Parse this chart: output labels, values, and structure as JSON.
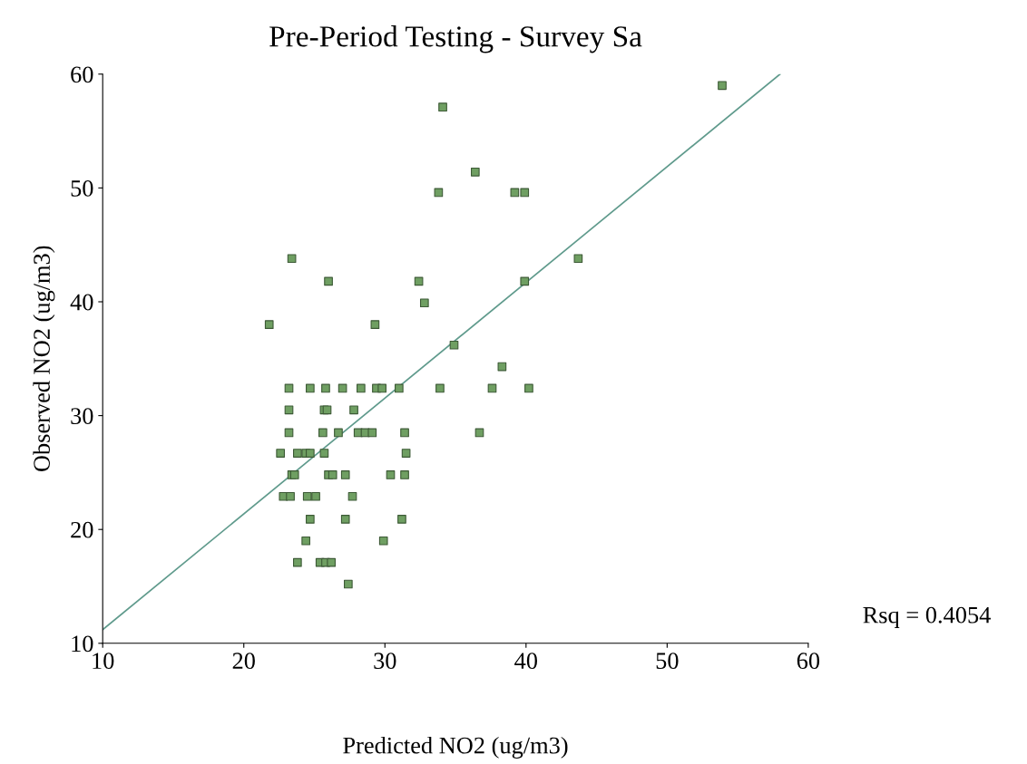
{
  "chart_data": {
    "type": "scatter",
    "title": "Pre-Period Testing - Survey Sa",
    "xlabel": "Predicted NO2 (ug/m3)",
    "ylabel": "Observed NO2 (ug/m3)",
    "xlim": [
      10,
      60
    ],
    "xticks": [
      10,
      20,
      30,
      40,
      50,
      60
    ],
    "ylim": [
      10,
      60
    ],
    "yticks": [
      10,
      20,
      30,
      40,
      50,
      60
    ],
    "grid": false,
    "legend": false,
    "marker": "square",
    "annotations": [
      "Rsq = 0.4054"
    ],
    "series": [
      {
        "color": "#6f9f62",
        "x": [
          21.8,
          23.4,
          26.0,
          34.1,
          33.8,
          36.4,
          39.2,
          39.9,
          53.9,
          32.4,
          32.8,
          29.3,
          34.9,
          43.7,
          39.9,
          38.3,
          37.6,
          33.9,
          40.2,
          36.7,
          23.2,
          24.7,
          25.8,
          27.0,
          28.3,
          29.4,
          29.8,
          31.0,
          23.2,
          25.7,
          25.9,
          27.8,
          23.2,
          25.6,
          26.7,
          28.1,
          28.6,
          29.1,
          31.4,
          22.6,
          23.8,
          24.4,
          24.7,
          25.7,
          31.5,
          23.4,
          23.6,
          26.0,
          26.3,
          27.2,
          30.4,
          31.4,
          22.8,
          23.3,
          24.5,
          25.1,
          27.7,
          24.7,
          27.2,
          31.2,
          24.4,
          29.9,
          23.8,
          25.4,
          25.8,
          26.2,
          27.4
        ],
        "values": [
          38.0,
          43.8,
          41.8,
          57.1,
          49.6,
          51.4,
          49.6,
          49.6,
          59.0,
          41.8,
          39.9,
          38.0,
          36.2,
          43.8,
          41.8,
          34.3,
          32.4,
          32.4,
          32.4,
          28.5,
          32.4,
          32.4,
          32.4,
          32.4,
          32.4,
          32.4,
          32.4,
          32.4,
          30.5,
          30.5,
          30.5,
          30.5,
          28.5,
          28.5,
          28.5,
          28.5,
          28.5,
          28.5,
          28.5,
          26.7,
          26.7,
          26.7,
          26.7,
          26.7,
          26.7,
          24.8,
          24.8,
          24.8,
          24.8,
          24.8,
          24.8,
          24.8,
          22.9,
          22.9,
          22.9,
          22.9,
          22.9,
          20.9,
          20.9,
          20.9,
          19.0,
          19.0,
          17.1,
          17.1,
          17.1,
          17.1,
          15.2
        ]
      },
      {
        "type": "line",
        "color": "#5f9a8c",
        "line_style": "solid",
        "marker": "none",
        "x": [
          10,
          58
        ],
        "values": [
          11.2,
          60
        ]
      }
    ]
  }
}
